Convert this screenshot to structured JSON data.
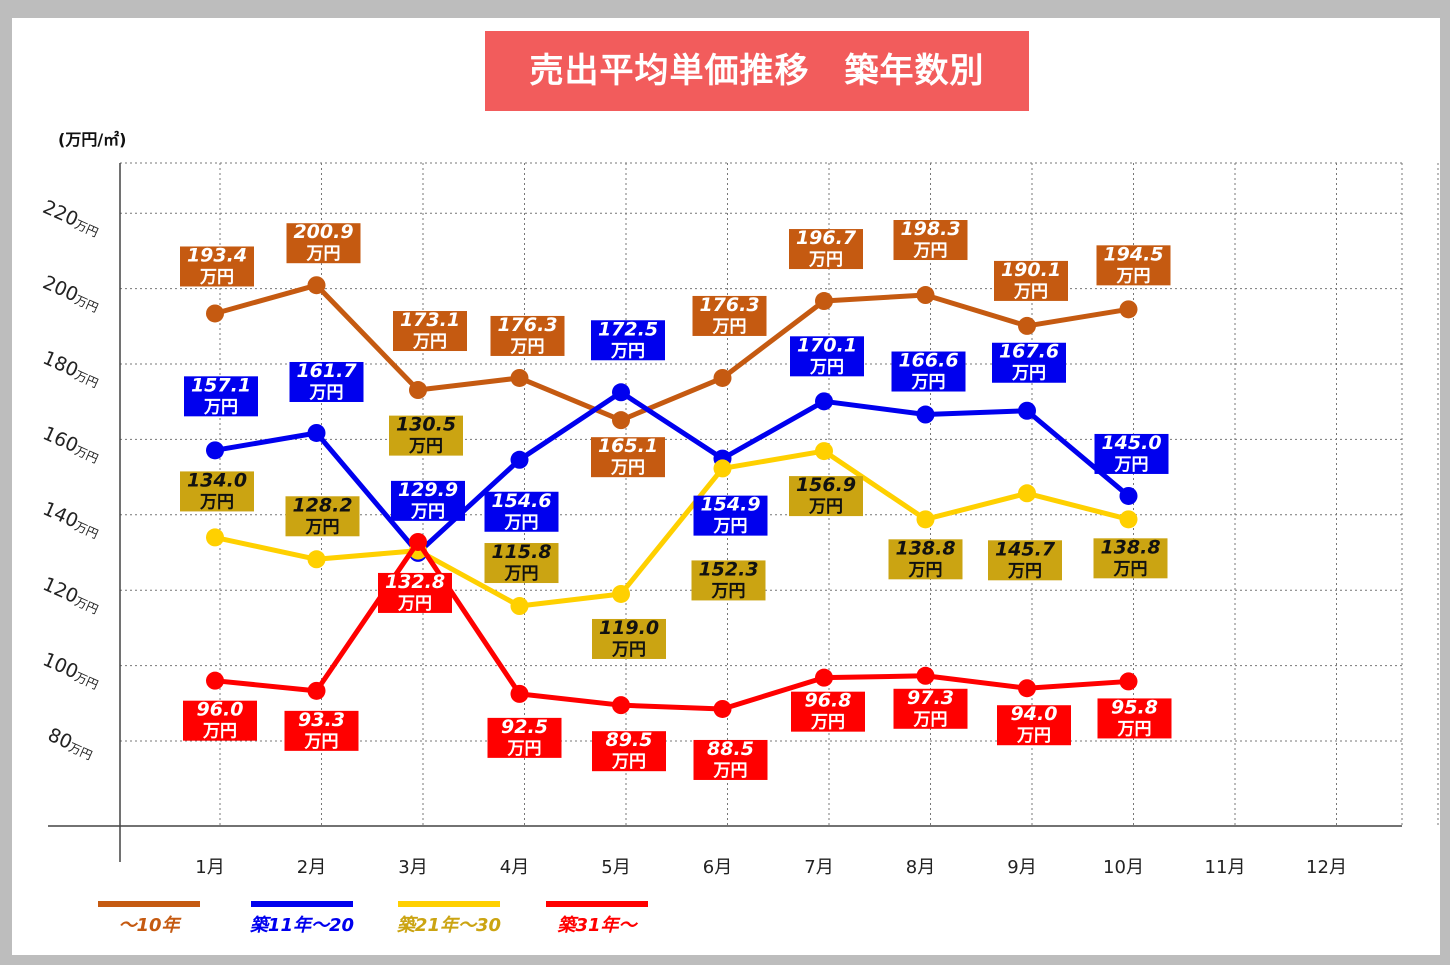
{
  "title": "売出平均単価推移　築年数別",
  "colors": {
    "title_bg": "#f25c5c",
    "series_0": "#c55a11",
    "series_1": "#0000ee",
    "series_2": "#ffd000",
    "series_3": "#ff0000"
  },
  "chart_data": {
    "type": "line",
    "y_unit_label": "(万円/㎡)",
    "ylim": [
      80,
      220
    ],
    "yticks": [
      {
        "value": 220,
        "label": "220",
        "unit": "万円"
      },
      {
        "value": 200,
        "label": "200",
        "unit": "万円"
      },
      {
        "value": 180,
        "label": "180",
        "unit": "万円"
      },
      {
        "value": 160,
        "label": "160",
        "unit": "万円"
      },
      {
        "value": 140,
        "label": "140",
        "unit": "万円"
      },
      {
        "value": 120,
        "label": "120",
        "unit": "万円"
      },
      {
        "value": 100,
        "label": "100",
        "unit": "万円"
      },
      {
        "value": 80,
        "label": "80",
        "unit": "万円"
      }
    ],
    "categories": [
      "1月",
      "2月",
      "3月",
      "4月",
      "5月",
      "6月",
      "7月",
      "8月",
      "9月",
      "10月",
      "11月",
      "12月"
    ],
    "grid": true,
    "legend_position": "bottom-left",
    "data_label_unit": "万円",
    "series": [
      {
        "name": "～10年",
        "values": [
          193.4,
          200.9,
          173.1,
          176.3,
          165.1,
          176.3,
          196.7,
          198.3,
          190.1,
          194.5,
          null,
          null
        ],
        "label_fill": "#c55a11",
        "label_text": "#ffffff"
      },
      {
        "name": "築11年～20",
        "values": [
          157.1,
          161.7,
          129.9,
          154.6,
          172.5,
          154.9,
          170.1,
          166.6,
          167.6,
          145.0,
          null,
          null
        ],
        "label_fill": "#0000ee",
        "label_text": "#ffffff"
      },
      {
        "name": "築21年～30",
        "values": [
          134.0,
          128.2,
          130.5,
          115.8,
          119.0,
          152.3,
          156.9,
          138.8,
          145.7,
          138.8,
          null,
          null
        ],
        "label_fill": "#cba412",
        "label_text": "#111111"
      },
      {
        "name": "築31年～",
        "values": [
          96.0,
          93.3,
          132.8,
          92.5,
          89.5,
          88.5,
          96.8,
          97.3,
          94.0,
          95.8,
          null,
          null
        ],
        "label_fill": "#ff0000",
        "label_text": "#ffffff"
      }
    ]
  }
}
